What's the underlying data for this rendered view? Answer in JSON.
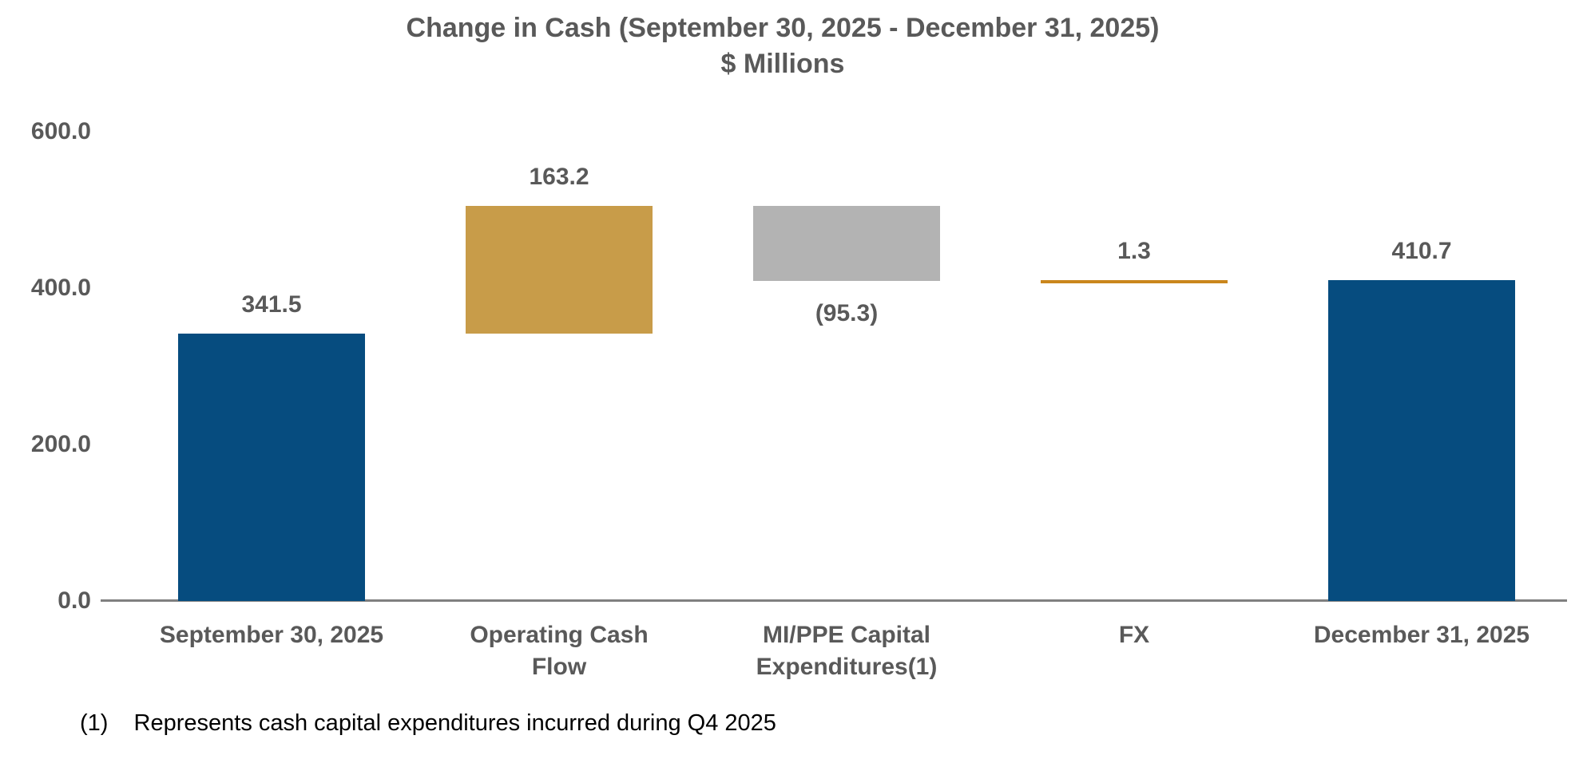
{
  "colors": {
    "blue": "#064c7f",
    "gold": "#c89c49",
    "gray": "#b3b3b3",
    "orange": "#ca861c",
    "text": "#595959",
    "axis": "#808080"
  },
  "footnote": {
    "marker": "(1)",
    "text": "Represents cash capital expenditures incurred during Q4 2025"
  },
  "chart_data": {
    "type": "bar",
    "subtype": "waterfall",
    "title": "Change in Cash (September 30, 2025 - December 31, 2025)",
    "units": "$ Millions",
    "xlabel": "",
    "ylabel": "",
    "grid": false,
    "legend": "none",
    "y_axis": {
      "min": 0,
      "max": 600,
      "ticks": [
        {
          "label": "600.0",
          "value": 600
        },
        {
          "label": "400.0",
          "value": 400
        },
        {
          "label": "200.0",
          "value": 200
        },
        {
          "label": "0.0",
          "value": 0
        }
      ]
    },
    "categories": [
      "September 30, 2025",
      "Operating Cash Flow",
      "MI/PPE Capital Expenditures(1)",
      "FX",
      "December 31, 2025"
    ],
    "bars": [
      {
        "category": "September 30, 2025",
        "category_lines": [
          "September 30, 2025"
        ],
        "value": 341.5,
        "value_label": "341.5",
        "start": 0,
        "end": 341.5,
        "color": "blue",
        "value_label_position": "above"
      },
      {
        "category": "Operating Cash Flow",
        "category_lines": [
          "Operating Cash",
          "Flow"
        ],
        "value": 163.2,
        "value_label": "163.2",
        "start": 341.5,
        "end": 504.7,
        "color": "gold",
        "value_label_position": "above"
      },
      {
        "category": "MI/PPE Capital Expenditures(1)",
        "category_lines": [
          "MI/PPE Capital",
          "Expenditures(1)"
        ],
        "value": -95.3,
        "value_label": "(95.3)",
        "start": 504.7,
        "end": 409.4,
        "color": "gray",
        "value_label_position": "below"
      },
      {
        "category": "FX",
        "category_lines": [
          "FX"
        ],
        "value": 1.3,
        "value_label": "1.3",
        "start": 409.4,
        "end": 410.7,
        "color": "orange",
        "value_label_position": "above"
      },
      {
        "category": "December 31, 2025",
        "category_lines": [
          "December 31, 2025"
        ],
        "value": 410.7,
        "value_label": "410.7",
        "start": 0,
        "end": 410.7,
        "color": "blue",
        "value_label_position": "above"
      }
    ]
  }
}
